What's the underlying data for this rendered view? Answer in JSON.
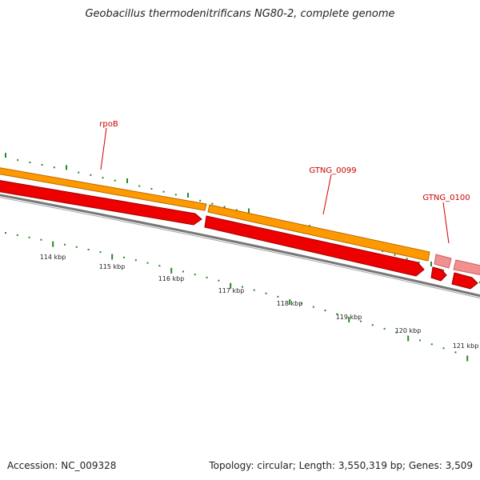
{
  "title": "Geobacillus thermodenitrificans NG80-2, complete genome",
  "genes": [
    {
      "name": "rpoB",
      "color": "#ff9900",
      "type": "CDS"
    },
    {
      "name": "GTNG_0099",
      "color": "#ff9900",
      "type": "CDS"
    },
    {
      "name": "GTNG_0100",
      "color": "#f08080",
      "type": "CDS"
    }
  ],
  "features": {
    "cds_colors": {
      "orange": "#ff9900",
      "orange_dark": "#b86a00",
      "red": "#ee0000",
      "pink": "#f09090"
    },
    "backbone_color": "#888888",
    "tick_color": "#228b22"
  },
  "ticks": [
    "114 kbp",
    "115 kbp",
    "116 kbp",
    "117 kbp",
    "118 kbp",
    "119 kbp",
    "120 kbp",
    "121 kbp"
  ],
  "footer": {
    "accession": "Accession: NC_009328",
    "summary": "Topology: circular; Length: 3,550,319 bp; Genes: 3,509"
  }
}
